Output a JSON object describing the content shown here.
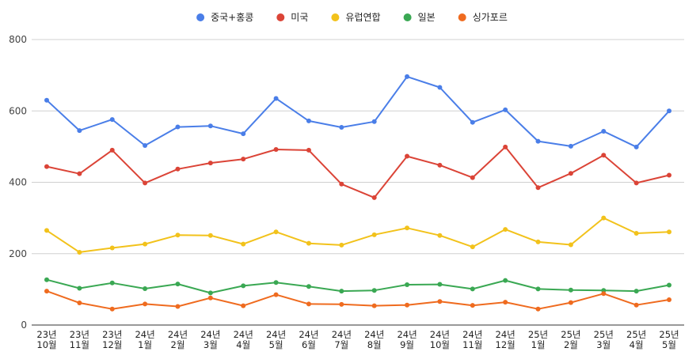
{
  "chart_data": {
    "type": "line",
    "title": "",
    "xlabel": "",
    "ylabel": "",
    "ylim": [
      0,
      800
    ],
    "yticks": [
      0,
      200,
      400,
      600,
      800
    ],
    "grid": true,
    "legend_position": "top-center",
    "categories": [
      [
        "23년",
        "10월"
      ],
      [
        "23년",
        "11월"
      ],
      [
        "23년",
        "12월"
      ],
      [
        "24년",
        "1월"
      ],
      [
        "24년",
        "2월"
      ],
      [
        "24년",
        "3월"
      ],
      [
        "24년",
        "4월"
      ],
      [
        "24년",
        "5월"
      ],
      [
        "24년",
        "6월"
      ],
      [
        "24년",
        "7월"
      ],
      [
        "24년",
        "8월"
      ],
      [
        "24년",
        "9월"
      ],
      [
        "24년",
        "10월"
      ],
      [
        "24년",
        "11월"
      ],
      [
        "24년",
        "12월"
      ],
      [
        "25년",
        "1월"
      ],
      [
        "25년",
        "2월"
      ],
      [
        "25년",
        "3월"
      ],
      [
        "25년",
        "4월"
      ],
      [
        "25년",
        "5월"
      ]
    ],
    "series": [
      {
        "name": "중국+홍콩",
        "color": "#4a7ee8",
        "values": [
          630,
          545,
          576,
          503,
          555,
          558,
          536,
          635,
          572,
          554,
          570,
          696,
          666,
          568,
          603,
          515,
          501,
          543,
          499,
          600
        ]
      },
      {
        "name": "미국",
        "color": "#db4437",
        "values": [
          444,
          424,
          490,
          398,
          437,
          454,
          465,
          492,
          490,
          395,
          357,
          473,
          448,
          413,
          499,
          385,
          425,
          476,
          398,
          420
        ]
      },
      {
        "name": "유럽연합",
        "color": "#f2c21b",
        "values": [
          265,
          204,
          216,
          227,
          252,
          251,
          227,
          261,
          229,
          224,
          253,
          272,
          251,
          219,
          268,
          233,
          225,
          300,
          257,
          261
        ]
      },
      {
        "name": "일본",
        "color": "#3aa853",
        "values": [
          127,
          103,
          118,
          102,
          115,
          90,
          110,
          119,
          108,
          95,
          97,
          113,
          114,
          101,
          125,
          101,
          98,
          97,
          95,
          112
        ]
      },
      {
        "name": "싱가포르",
        "color": "#ef6b1f",
        "values": [
          95,
          62,
          45,
          59,
          52,
          76,
          54,
          85,
          59,
          58,
          54,
          56,
          66,
          55,
          64,
          45,
          63,
          88,
          56,
          71
        ]
      }
    ]
  }
}
